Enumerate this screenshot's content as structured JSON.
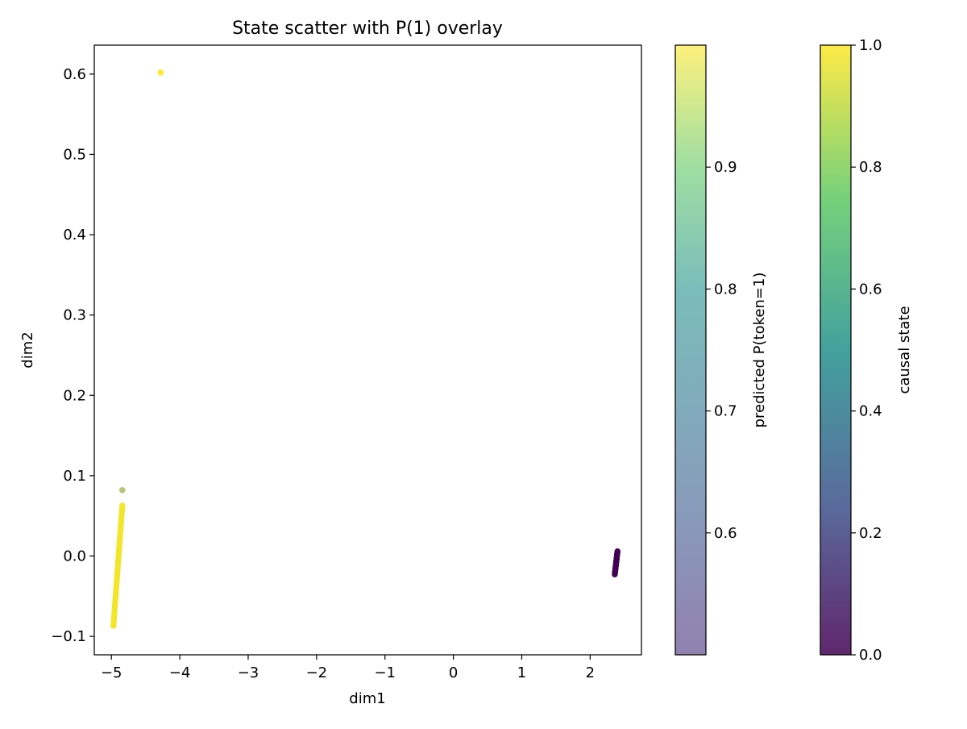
{
  "chart_data": {
    "type": "scatter",
    "title": "State scatter with P(1) overlay",
    "xlabel": "dim1",
    "ylabel": "dim2",
    "xlim": [
      -5.25,
      2.75
    ],
    "ylim": [
      -0.123,
      0.636
    ],
    "xticks": [
      -5,
      -4,
      -3,
      -2,
      -1,
      0,
      1,
      2
    ],
    "xtick_labels": [
      "−5",
      "−4",
      "−3",
      "−2",
      "−1",
      "0",
      "1",
      "2"
    ],
    "yticks": [
      -0.1,
      0.0,
      0.1,
      0.2,
      0.3,
      0.4,
      0.5,
      0.6
    ],
    "ytick_labels": [
      "−0.1",
      "0.0",
      "0.1",
      "0.2",
      "0.3",
      "0.4",
      "0.5",
      "0.6"
    ],
    "grid": false,
    "clusters": [
      {
        "x_start": -4.97,
        "y_start": -0.087,
        "x_end": -4.84,
        "y_end": 0.063,
        "causal_state": 1.0,
        "predicted_p1": 0.93
      },
      {
        "x": -4.84,
        "y": 0.082,
        "causal_state": 1.0,
        "predicted_p1": 0.7
      },
      {
        "x": -4.28,
        "y": 0.602,
        "causal_state": 1.0,
        "predicted_p1": 0.99
      },
      {
        "x_start": 2.36,
        "y_start": -0.023,
        "x_end": 2.4,
        "y_end": 0.006,
        "causal_state": 0.0,
        "predicted_p1": 0.5
      }
    ],
    "colorbars": [
      {
        "label": "predicted P(token=1)",
        "range": [
          0.5,
          1.0
        ],
        "ticks": [
          0.6,
          0.7,
          0.8,
          0.9
        ],
        "tick_labels": [
          "0.6",
          "0.7",
          "0.8",
          "0.9"
        ],
        "alpha": 0.6
      },
      {
        "label": "causal state",
        "range": [
          0.0,
          1.0
        ],
        "ticks": [
          0.0,
          0.2,
          0.4,
          0.6,
          0.8,
          1.0
        ],
        "tick_labels": [
          "0.0",
          "0.2",
          "0.4",
          "0.6",
          "0.8",
          "1.0"
        ],
        "alpha": 0.85
      }
    ],
    "colormap": "viridis",
    "colors": [
      "#440154",
      "#3b528b",
      "#21918c",
      "#5ec962",
      "#fde725"
    ]
  }
}
